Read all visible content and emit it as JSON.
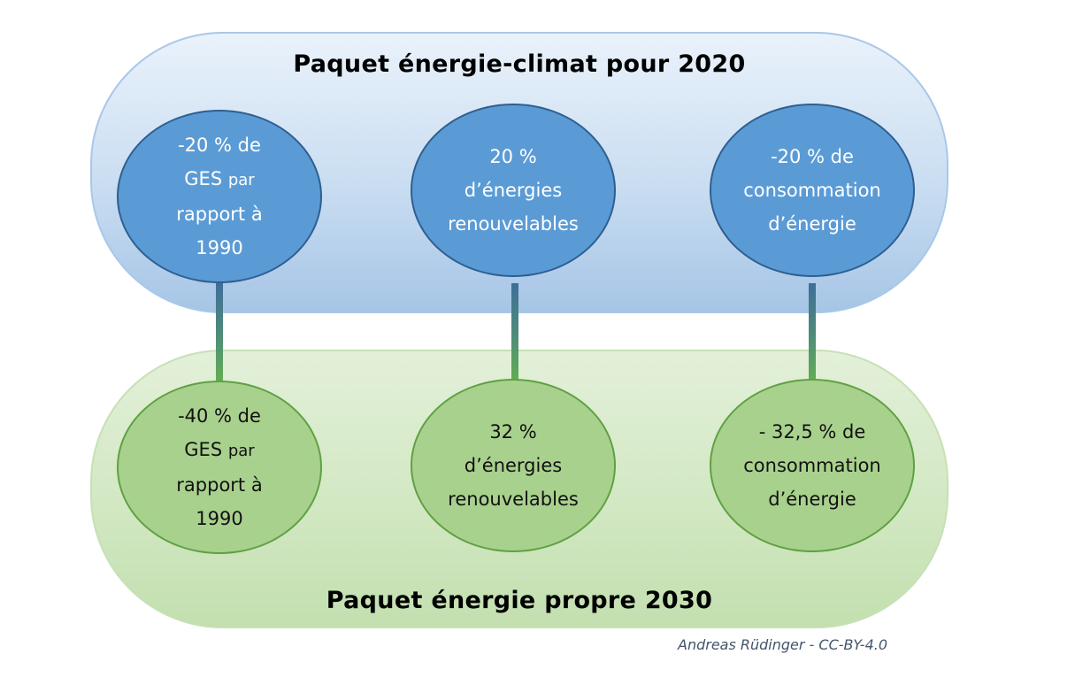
{
  "top_panel": {
    "title": "Paquet énergie-climat pour 2020",
    "circles": [
      {
        "line1": "-20 % de",
        "line2_main": "GES",
        "line2_small": "par",
        "line3": "rapport à",
        "line4": "1990"
      },
      {
        "line1": "20 %",
        "line2": "d’énergies",
        "line3": "renouvelables"
      },
      {
        "line1": "-20 % de",
        "line2": "consommation",
        "line3": "d’énergie"
      }
    ]
  },
  "bottom_panel": {
    "title": "Paquet énergie propre 2030",
    "circles": [
      {
        "line1": "-40 % de",
        "line2_main": "GES",
        "line2_small": "par",
        "line3": "rapport à",
        "line4": "1990"
      },
      {
        "line1": "32 %",
        "line2": "d’énergies",
        "line3": "renouvelables"
      },
      {
        "line1": "- 32,5 % de",
        "line2": "consommation",
        "line3": "d’énergie"
      }
    ]
  },
  "credit": "Andreas Rüdinger - CC-BY-4.0",
  "colors": {
    "top_circle_fill": "#5b9bd5",
    "top_circle_border": "#2e5f92",
    "bottom_circle_fill": "#a9d18e",
    "bottom_circle_border": "#5fa142",
    "top_panel_fill": "#c9ddf1",
    "bottom_panel_fill": "#d2e8c3"
  }
}
